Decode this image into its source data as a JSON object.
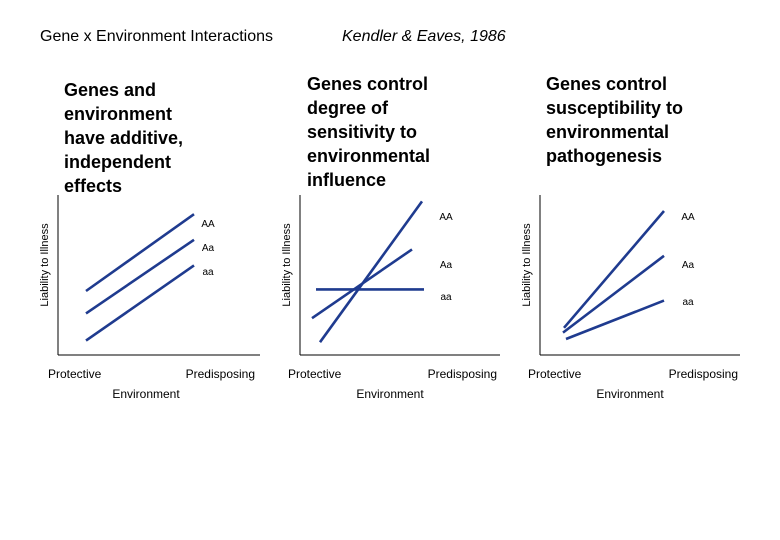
{
  "page": {
    "title": "Gene x Environment Interactions",
    "citation": "Kendler & Eaves, 1986"
  },
  "colors": {
    "line": "#1f3b8f",
    "axis": "#000000"
  },
  "chart_data": [
    {
      "type": "line",
      "heading": "Genes and\nenvironment\nhave additive,\nindependent\neffects",
      "xlabel": "Environment",
      "ylabel": "Liability to Illness",
      "x_ticks": [
        "Protective",
        "Predisposing"
      ],
      "x": [
        0,
        1
      ],
      "ylim": [
        0,
        1
      ],
      "series": [
        {
          "name": "AA",
          "values": [
            0.4,
            0.88
          ]
        },
        {
          "name": "Aa",
          "values": [
            0.26,
            0.72
          ]
        },
        {
          "name": "aa",
          "values": [
            0.09,
            0.56
          ]
        }
      ]
    },
    {
      "type": "line",
      "heading": "Genes control\ndegree of\nsensitivity to\nenvironmental\ninfluence",
      "xlabel": "Environment",
      "ylabel": "Liability to Illness",
      "x_ticks": [
        "Protective",
        "Predisposing"
      ],
      "x": [
        0,
        1
      ],
      "ylim": [
        0,
        1
      ],
      "series": [
        {
          "name": "AA",
          "values": [
            0.08,
            0.96
          ]
        },
        {
          "name": "Aa",
          "values": [
            0.23,
            0.66
          ]
        },
        {
          "name": "aa",
          "values": [
            0.41,
            0.41
          ]
        }
      ]
    },
    {
      "type": "line",
      "heading": "Genes control\nsusceptibility to\nenvironmental\npathogenesis",
      "xlabel": "Environment",
      "ylabel": "Liability to Illness",
      "x_ticks": [
        "Protective",
        "Predisposing"
      ],
      "x": [
        0,
        1
      ],
      "ylim": [
        0,
        1
      ],
      "series": [
        {
          "name": "AA",
          "values": [
            0.17,
            0.9
          ]
        },
        {
          "name": "Aa",
          "values": [
            0.14,
            0.62
          ]
        },
        {
          "name": "aa",
          "values": [
            0.1,
            0.34
          ]
        }
      ]
    }
  ]
}
